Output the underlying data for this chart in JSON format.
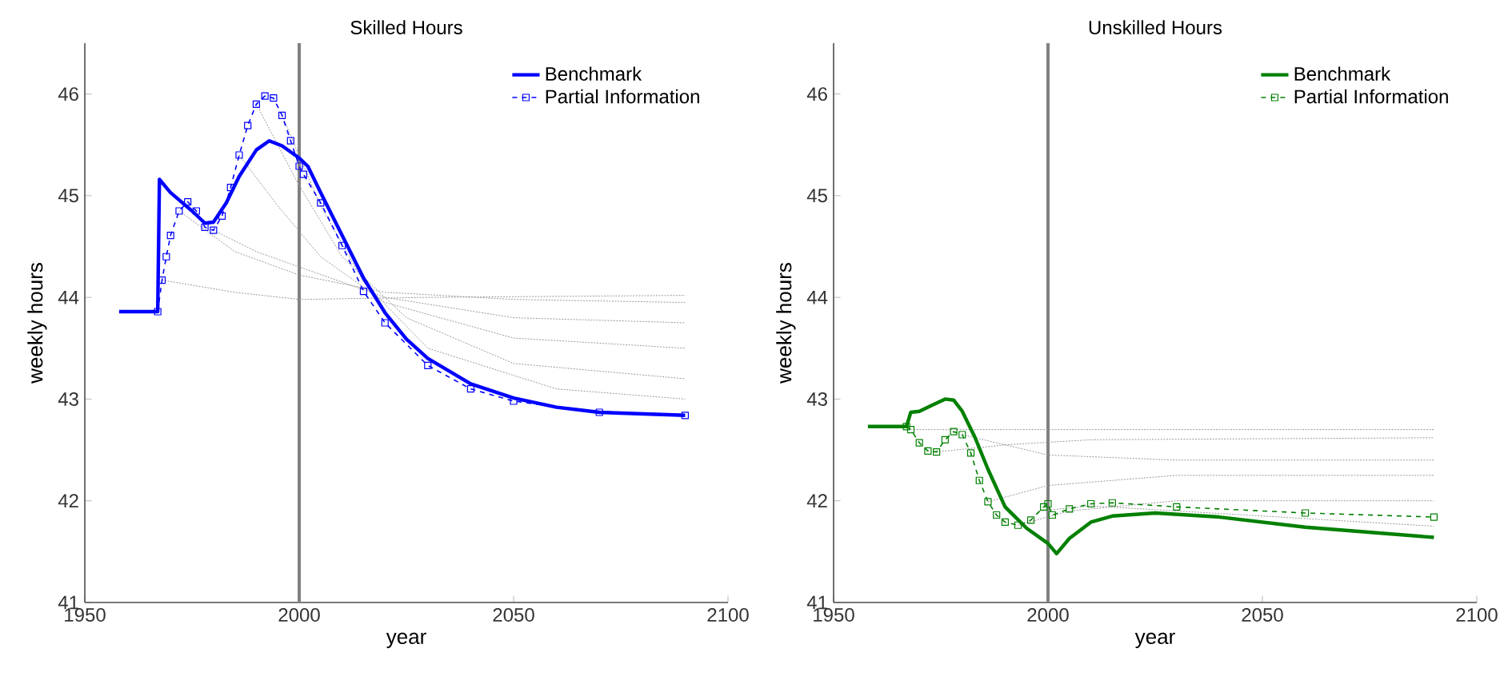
{
  "chart_data": [
    {
      "type": "line",
      "title": "Skilled Hours",
      "xlabel": "year",
      "ylabel": "weekly hours",
      "xlim": [
        1950,
        2100
      ],
      "ylim": [
        41,
        46.5
      ],
      "xticks": [
        1950,
        2000,
        2050,
        2100
      ],
      "yticks": [
        41,
        42,
        43,
        44,
        45,
        46
      ],
      "grid": false,
      "legend": "top right",
      "ref_lines": [
        {
          "axis": "x",
          "value": 2000,
          "color": "#808080"
        }
      ],
      "series": [
        {
          "name": "Benchmark",
          "color": "#0000ff",
          "line_style": "solid",
          "marker": "none",
          "x": [
            1958,
            1967,
            1967.4,
            1970,
            1975,
            1978,
            1980,
            1983,
            1986,
            1990,
            1993,
            1996,
            2000,
            2002,
            2005,
            2010,
            2015,
            2020,
            2025,
            2030,
            2040,
            2050,
            2060,
            2070,
            2090
          ],
          "values": [
            43.86,
            43.86,
            45.16,
            45.03,
            44.85,
            44.73,
            44.74,
            44.93,
            45.19,
            45.45,
            45.54,
            45.49,
            45.37,
            45.29,
            45.03,
            44.61,
            44.19,
            43.85,
            43.59,
            43.4,
            43.15,
            43.01,
            42.92,
            42.87,
            42.84
          ]
        },
        {
          "name": "Partial Information",
          "color": "#0000ff",
          "line_style": "dashed",
          "marker": "square",
          "x": [
            1967,
            1968,
            1969,
            1970,
            1972,
            1974,
            1976,
            1978,
            1980,
            1982,
            1984,
            1986,
            1988,
            1990,
            1992,
            1994,
            1996,
            1998,
            2000,
            2001,
            2005,
            2010,
            2015,
            2020,
            2030,
            2040,
            2050,
            2070,
            2090
          ],
          "values": [
            43.86,
            44.17,
            44.4,
            44.61,
            44.85,
            44.94,
            44.85,
            44.69,
            44.66,
            44.8,
            45.08,
            45.4,
            45.69,
            45.9,
            45.98,
            45.96,
            45.79,
            45.54,
            45.29,
            45.21,
            44.93,
            44.51,
            44.06,
            43.75,
            43.33,
            43.1,
            42.98,
            42.87,
            42.84
          ]
        },
        {
          "color": "#999999",
          "line_style": "dotted",
          "marker": "none",
          "x": [
            1968,
            1985,
            2000,
            2030,
            2090
          ],
          "values": [
            44.17,
            44.05,
            43.98,
            44.0,
            44.02
          ]
        },
        {
          "color": "#999999",
          "line_style": "dotted",
          "marker": "none",
          "x": [
            1972,
            1985,
            2000,
            2020,
            2050,
            2090
          ],
          "values": [
            44.85,
            44.45,
            44.22,
            44.05,
            43.98,
            43.95
          ]
        },
        {
          "color": "#999999",
          "line_style": "dotted",
          "marker": "none",
          "x": [
            1980,
            1990,
            2000,
            2020,
            2050,
            2090
          ],
          "values": [
            44.66,
            44.45,
            44.3,
            44.0,
            43.8,
            43.75
          ]
        },
        {
          "color": "#999999",
          "line_style": "dotted",
          "marker": "none",
          "x": [
            1986,
            1995,
            2005,
            2020,
            2050,
            2090
          ],
          "values": [
            45.4,
            44.9,
            44.4,
            43.95,
            43.6,
            43.5
          ]
        },
        {
          "color": "#999999",
          "line_style": "dotted",
          "marker": "none",
          "x": [
            1990,
            2000,
            2010,
            2025,
            2050,
            2090
          ],
          "values": [
            45.9,
            45.1,
            44.4,
            43.8,
            43.35,
            43.2
          ]
        },
        {
          "color": "#999999",
          "line_style": "dotted",
          "marker": "none",
          "x": [
            1996,
            2005,
            2015,
            2030,
            2060,
            2090
          ],
          "values": [
            45.79,
            44.9,
            44.15,
            43.5,
            43.1,
            43.0
          ]
        }
      ]
    },
    {
      "type": "line",
      "title": "Unskilled Hours",
      "xlabel": "year",
      "ylabel": "weekly hours",
      "xlim": [
        1950,
        2100
      ],
      "ylim": [
        41,
        46.5
      ],
      "xticks": [
        1950,
        2000,
        2050,
        2100
      ],
      "yticks": [
        41,
        42,
        43,
        44,
        45,
        46
      ],
      "grid": false,
      "legend": "top right",
      "ref_lines": [
        {
          "axis": "x",
          "value": 2000,
          "color": "#808080"
        }
      ],
      "series": [
        {
          "name": "Benchmark",
          "color": "#008000",
          "line_style": "solid",
          "marker": "none",
          "x": [
            1958,
            1967,
            1968,
            1970,
            1973,
            1976,
            1978,
            1980,
            1983,
            1986,
            1990,
            1995,
            2000,
            2002,
            2005,
            2010,
            2015,
            2025,
            2040,
            2060,
            2090
          ],
          "values": [
            42.73,
            42.73,
            42.87,
            42.88,
            42.94,
            43.0,
            42.99,
            42.88,
            42.62,
            42.31,
            41.94,
            41.73,
            41.58,
            41.48,
            41.63,
            41.79,
            41.85,
            41.88,
            41.84,
            41.74,
            41.64
          ]
        },
        {
          "name": "Partial Information",
          "color": "#008000",
          "line_style": "dashed",
          "marker": "square",
          "x": [
            1967,
            1968,
            1970,
            1972,
            1974,
            1976,
            1978,
            1980,
            1982,
            1984,
            1986,
            1988,
            1990,
            1993,
            1996,
            1999,
            2000,
            2001,
            2005,
            2010,
            2015,
            2030,
            2060,
            2090
          ],
          "values": [
            42.73,
            42.7,
            42.57,
            42.49,
            42.48,
            42.6,
            42.68,
            42.65,
            42.47,
            42.2,
            41.99,
            41.86,
            41.79,
            41.76,
            41.81,
            41.94,
            41.97,
            41.86,
            41.92,
            41.97,
            41.98,
            41.94,
            41.88,
            41.84
          ]
        },
        {
          "color": "#999999",
          "line_style": "dotted",
          "marker": "none",
          "x": [
            1968,
            2000,
            2090
          ],
          "values": [
            42.7,
            42.7,
            42.7
          ]
        },
        {
          "color": "#999999",
          "line_style": "dotted",
          "marker": "none",
          "x": [
            1974,
            1990,
            2010,
            2090
          ],
          "values": [
            42.48,
            42.55,
            42.6,
            42.62
          ]
        },
        {
          "color": "#999999",
          "line_style": "dotted",
          "marker": "none",
          "x": [
            1980,
            2000,
            2030,
            2090
          ],
          "values": [
            42.65,
            42.45,
            42.4,
            42.4
          ]
        },
        {
          "color": "#999999",
          "line_style": "dotted",
          "marker": "none",
          "x": [
            1986,
            2000,
            2030,
            2090
          ],
          "values": [
            41.99,
            42.15,
            42.25,
            42.25
          ]
        },
        {
          "color": "#999999",
          "line_style": "dotted",
          "marker": "none",
          "x": [
            1993,
            2005,
            2030,
            2090
          ],
          "values": [
            41.76,
            41.9,
            42.0,
            42.0
          ]
        },
        {
          "color": "#999999",
          "line_style": "dotted",
          "marker": "none",
          "x": [
            1998,
            2010,
            2090
          ],
          "values": [
            41.9,
            41.95,
            41.75
          ]
        }
      ]
    }
  ]
}
